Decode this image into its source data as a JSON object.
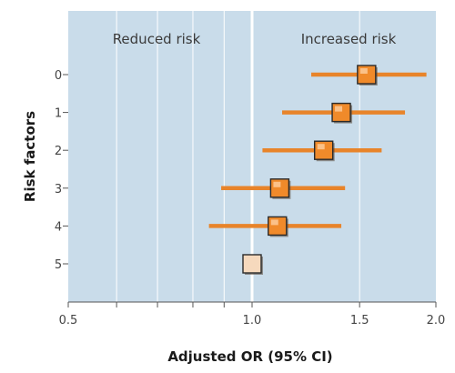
{
  "chart_data": {
    "type": "forest",
    "xlabel": "Adjusted OR (95% CI)",
    "ylabel": "Risk factors",
    "xscale": "log",
    "xlim": [
      0.5,
      2.0
    ],
    "xticks": [
      0.5,
      1.0,
      1.5,
      2.0
    ],
    "xtick_labels": [
      "0.5",
      "1.0",
      "1.5",
      "2.0"
    ],
    "minor_gridlines": [
      0.6,
      0.7,
      0.8,
      0.9,
      1.5
    ],
    "reference_line": 1.0,
    "region_labels": {
      "left": "Reduced risk",
      "right": "Increased risk"
    },
    "categories": [
      "0",
      "1",
      "2",
      "3",
      "4",
      "5"
    ],
    "or": [
      1.54,
      1.4,
      1.31,
      1.11,
      1.1,
      1.0
    ],
    "ci_low": [
      1.25,
      1.12,
      1.04,
      0.89,
      0.85,
      null
    ],
    "ci_high": [
      1.93,
      1.78,
      1.63,
      1.42,
      1.4,
      null
    ],
    "grid": true,
    "colors": {
      "background": "#c9dcea",
      "gridline": "#ffffff",
      "ci_bar": "#e8842a",
      "marker_fill": "#f08a2a",
      "marker_reference": "#f6d9bd"
    }
  }
}
